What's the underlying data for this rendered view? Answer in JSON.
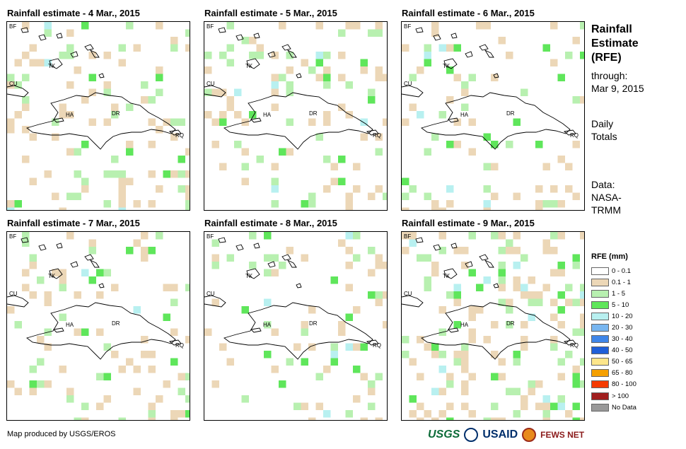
{
  "panels": [
    {
      "title": "Rainfall estimate - 4 Mar., 2015"
    },
    {
      "title": "Rainfall estimate - 5 Mar., 2015"
    },
    {
      "title": "Rainfall estimate - 6 Mar., 2015"
    },
    {
      "title": "Rainfall estimate - 7 Mar., 2015"
    },
    {
      "title": "Rainfall estimate - 8 Mar., 2015"
    },
    {
      "title": "Rainfall estimate - 9 Mar., 2015"
    }
  ],
  "map_labels": {
    "bf": "BF",
    "tk": "TK",
    "cu": "CU",
    "ha": "HA",
    "dr": "DR",
    "rq": "RQ"
  },
  "side": {
    "title_line1": "Rainfall",
    "title_line2": "Estimate",
    "title_line3": "(RFE)",
    "through_line1": "through:",
    "through_line2": "Mar 9, 2015",
    "daily_line1": "Daily",
    "daily_line2": "Totals",
    "data_line1": "Data:",
    "data_line2": "NASA-",
    "data_line3": "TRMM"
  },
  "legend": {
    "title": "RFE (mm)",
    "items": [
      {
        "label": "0 - 0.1",
        "color": "#ffffff"
      },
      {
        "label": "0.1 - 1",
        "color": "#ecd7b7"
      },
      {
        "label": "1 - 5",
        "color": "#b8f0b0"
      },
      {
        "label": "5 - 10",
        "color": "#5fe65b"
      },
      {
        "label": "10 - 20",
        "color": "#b8f0f0"
      },
      {
        "label": "20 - 30",
        "color": "#78b6f0"
      },
      {
        "label": "30 - 40",
        "color": "#3f86e8"
      },
      {
        "label": "40 - 50",
        "color": "#1f5fd8"
      },
      {
        "label": "50 - 65",
        "color": "#fde68a"
      },
      {
        "label": "65 - 80",
        "color": "#f5a000"
      },
      {
        "label": "80 - 100",
        "color": "#f53a00"
      },
      {
        "label": "> 100",
        "color": "#a01f1f"
      },
      {
        "label": "No Data",
        "color": "#999999"
      }
    ]
  },
  "footer": {
    "credit": "Map produced by USGS/EROS",
    "usgs": "USGS",
    "usaid": "USAID",
    "fews": "FEWS NET"
  }
}
